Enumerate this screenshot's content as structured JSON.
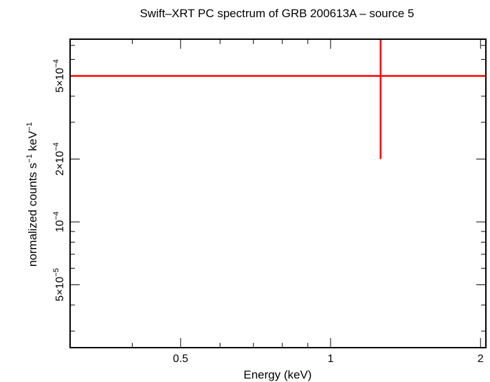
{
  "chart_data": {
    "type": "scatter",
    "title": "Swift–XRT PC spectrum of GRB 200613A – source 5",
    "xlabel": "Energy (keV)",
    "ylabel": {
      "base": "normalized counts s",
      "sup1": "−1",
      "mid": " keV",
      "sup2": "−1"
    },
    "x_scale": "log",
    "y_scale": "log",
    "xlim": [
      0.3,
      2.05
    ],
    "ylim": [
      2.5e-05,
      0.00075
    ],
    "x_ticks": [
      {
        "value": 0.5,
        "label": "0.5"
      },
      {
        "value": 1,
        "label": "1"
      },
      {
        "value": 2,
        "label": "2"
      }
    ],
    "y_ticks": [
      {
        "value": 5e-05,
        "mant": "5×10",
        "exp": "−5"
      },
      {
        "value": 0.0001,
        "mant": "10",
        "exp": "−4"
      },
      {
        "value": 0.0002,
        "mant": "2×10",
        "exp": "−4"
      },
      {
        "value": 0.0005,
        "mant": "5×10",
        "exp": "−4"
      }
    ],
    "series": [
      {
        "color": "#ff0000",
        "points": [
          {
            "x": 1.26,
            "x_low": 0.3,
            "x_high": 2.05,
            "y": 0.0005,
            "y_low": 0.0002,
            "y_high": 0.00075
          }
        ]
      }
    ],
    "grid": false,
    "legend": "none"
  }
}
